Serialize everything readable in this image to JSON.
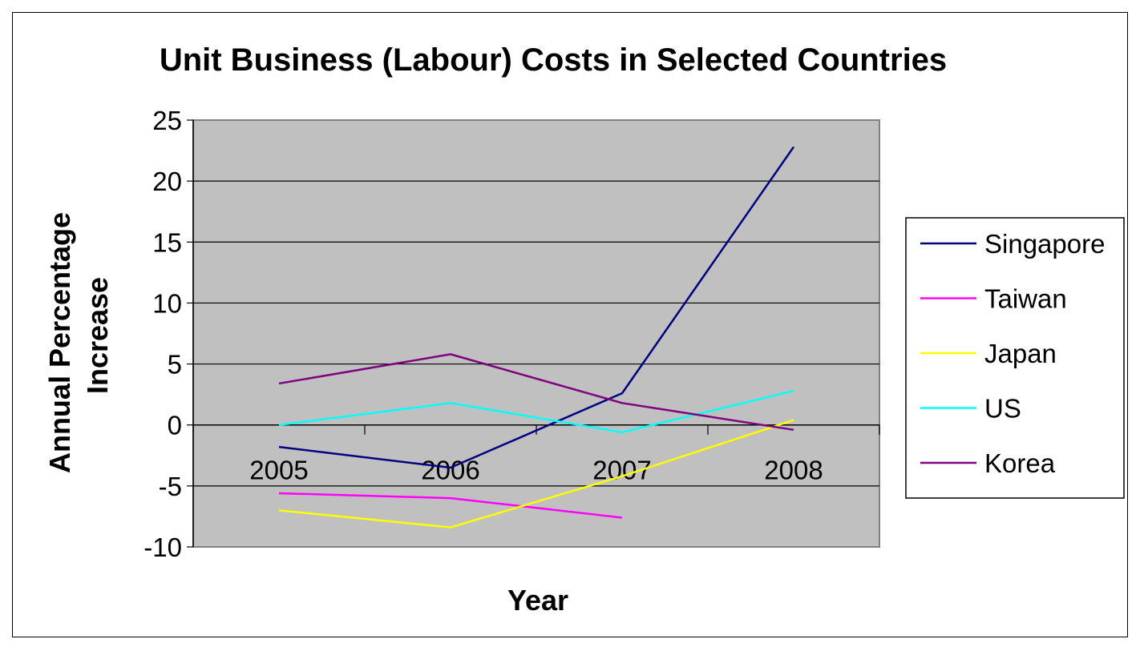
{
  "chart_data": {
    "type": "line",
    "title": "Unit Business (Labour) Costs in Selected Countries",
    "xlabel": "Year",
    "ylabel": "Annual Percentage Increase",
    "categories": [
      "2005",
      "2006",
      "2007",
      "2008"
    ],
    "ylim": [
      -10,
      25
    ],
    "yticks": [
      25,
      20,
      15,
      10,
      5,
      0,
      -5,
      -10
    ],
    "grid": true,
    "legend_position": "right",
    "plot_background": "#c0c0c0",
    "series": [
      {
        "name": "Singapore",
        "color": "#000080",
        "values": [
          -1.8,
          -3.5,
          2.6,
          22.8
        ]
      },
      {
        "name": "Taiwan",
        "color": "#ff00ff",
        "values": [
          -5.6,
          -6.0,
          -7.6,
          null
        ]
      },
      {
        "name": "Japan",
        "color": "#ffff00",
        "values": [
          -7.0,
          -8.4,
          -4.2,
          0.4
        ]
      },
      {
        "name": "US",
        "color": "#00ffff",
        "values": [
          0.0,
          1.8,
          -0.6,
          2.8
        ]
      },
      {
        "name": "Korea",
        "color": "#800080",
        "values": [
          3.4,
          5.8,
          1.8,
          -0.4
        ]
      }
    ]
  }
}
